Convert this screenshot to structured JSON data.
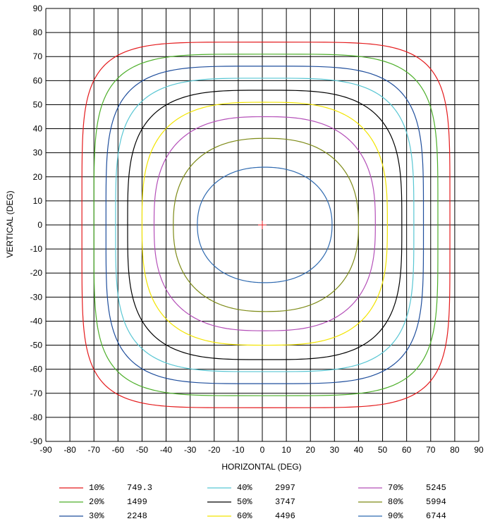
{
  "chart_data": {
    "type": "contour",
    "xlabel": "HORIZONTAL (DEG)",
    "ylabel": "VERTICAL (DEG)",
    "xlim": [
      -90,
      90
    ],
    "ylim": [
      -90,
      90
    ],
    "x_ticks": [
      -90,
      -80,
      -70,
      -60,
      -50,
      -40,
      -30,
      -20,
      -10,
      0,
      10,
      20,
      30,
      40,
      50,
      60,
      70,
      80,
      90
    ],
    "y_ticks": [
      90,
      80,
      70,
      60,
      50,
      40,
      30,
      20,
      10,
      0,
      -10,
      -20,
      -30,
      -40,
      -50,
      -60,
      -70,
      -80,
      -90
    ],
    "grid": true,
    "center_marker": {
      "x": 0,
      "y": 0,
      "color": "#e41a1c"
    },
    "series": [
      {
        "name": "10%",
        "value": "749.3",
        "color": "#e41a1c",
        "x_range": [
          -75,
          78
        ],
        "y_range": [
          -76,
          76
        ]
      },
      {
        "name": "20%",
        "value": "1499",
        "color": "#4daf2a",
        "x_range": [
          -70,
          73
        ],
        "y_range": [
          -71,
          71
        ]
      },
      {
        "name": "30%",
        "value": "2248",
        "color": "#1f4e9c",
        "x_range": [
          -65,
          67
        ],
        "y_range": [
          -66,
          66
        ]
      },
      {
        "name": "40%",
        "value": "2997",
        "color": "#58c6d3",
        "x_range": [
          -61,
          63
        ],
        "y_range": [
          -61,
          61
        ]
      },
      {
        "name": "50%",
        "value": "3747",
        "color": "#000000",
        "x_range": [
          -56,
          58
        ],
        "y_range": [
          -56,
          56
        ]
      },
      {
        "name": "60%",
        "value": "4496",
        "color": "#f2e400",
        "x_range": [
          -50,
          52
        ],
        "y_range": [
          -50,
          51
        ]
      },
      {
        "name": "70%",
        "value": "5245",
        "color": "#b44fb8",
        "x_range": [
          -45,
          47
        ],
        "y_range": [
          -44,
          45
        ]
      },
      {
        "name": "80%",
        "value": "5994",
        "color": "#7d8a16",
        "x_range": [
          -37,
          40
        ],
        "y_range": [
          -36,
          36
        ]
      },
      {
        "name": "90%",
        "value": "6744",
        "color": "#2f6ab0",
        "x_range": [
          -27,
          29
        ],
        "y_range": [
          -24,
          24
        ]
      }
    ]
  }
}
